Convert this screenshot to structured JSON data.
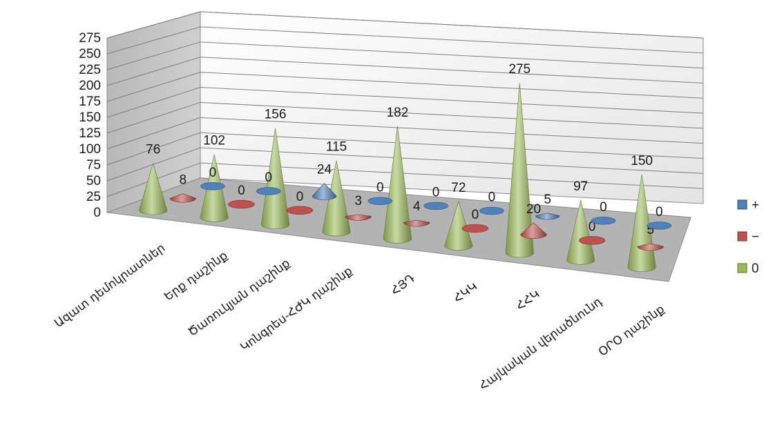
{
  "chart_data": {
    "type": "bar",
    "subtype": "3d-cone",
    "categories": [
      "Ազատ դեմոկրատներ",
      "Երք դաշինք",
      "Ծառուկյան դաշինք",
      "Կոնգրես-ՀԺԿ դաշինք",
      "ՀՅԴ",
      "ՀԿԿ",
      "ՀՀԿ",
      "Հայկական վերածնունդ",
      "ՕՐՕ դաշինք"
    ],
    "series": [
      {
        "name": "+",
        "color": "#4f81bd",
        "values": [
          0,
          0,
          24,
          0,
          0,
          0,
          5,
          0,
          0
        ]
      },
      {
        "name": "−",
        "color": "#c0504d",
        "values": [
          8,
          0,
          0,
          3,
          4,
          0,
          20,
          0,
          5
        ]
      },
      {
        "name": "0",
        "color": "#9bbb59",
        "values": [
          76,
          102,
          156,
          115,
          182,
          72,
          275,
          97,
          150
        ]
      }
    ],
    "yticks": [
      "0",
      "25",
      "50",
      "75",
      "100",
      "125",
      "150",
      "175",
      "200",
      "225",
      "250",
      "275"
    ],
    "ylim": [
      0,
      275
    ],
    "grid": true,
    "legend_position": "right"
  }
}
